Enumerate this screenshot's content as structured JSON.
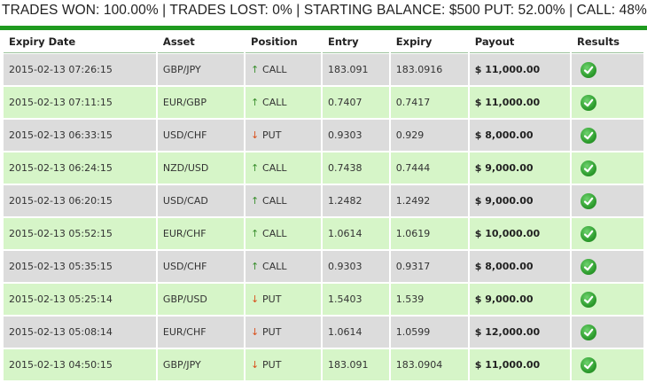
{
  "summary": "TRADES WON: 100.00% | TRADES LOST: 0% | STARTING BALANCE: $500 PUT: 52.00% | CALL: 48%",
  "colors": {
    "accent": "#1f9a1f",
    "row_odd": "#dcdcdc",
    "row_even": "#d6f5c8",
    "call_arrow": "#3a8f2e",
    "put_arrow": "#d9501c"
  },
  "headers": [
    "Expiry Date",
    "Asset",
    "Position",
    "Entry",
    "Expiry",
    "Payout",
    "Results"
  ],
  "rows": [
    {
      "date": "2015-02-13 07:26:15",
      "asset": "GBP/JPY",
      "position": "CALL",
      "entry": "183.091",
      "expiry": "183.0916",
      "payout": "$ 11,000.00",
      "result": "check-icon"
    },
    {
      "date": "2015-02-13 07:11:15",
      "asset": "EUR/GBP",
      "position": "CALL",
      "entry": "0.7407",
      "expiry": "0.7417",
      "payout": "$ 11,000.00",
      "result": "check-icon"
    },
    {
      "date": "2015-02-13 06:33:15",
      "asset": "USD/CHF",
      "position": "PUT",
      "entry": "0.9303",
      "expiry": "0.929",
      "payout": "$ 8,000.00",
      "result": "check-icon"
    },
    {
      "date": "2015-02-13 06:24:15",
      "asset": "NZD/USD",
      "position": "CALL",
      "entry": "0.7438",
      "expiry": "0.7444",
      "payout": "$ 9,000.00",
      "result": "check-icon"
    },
    {
      "date": "2015-02-13 06:20:15",
      "asset": "USD/CAD",
      "position": "CALL",
      "entry": "1.2482",
      "expiry": "1.2492",
      "payout": "$ 9,000.00",
      "result": "check-icon"
    },
    {
      "date": "2015-02-13 05:52:15",
      "asset": "EUR/CHF",
      "position": "CALL",
      "entry": "1.0614",
      "expiry": "1.0619",
      "payout": "$ 10,000.00",
      "result": "check-icon"
    },
    {
      "date": "2015-02-13 05:35:15",
      "asset": "USD/CHF",
      "position": "CALL",
      "entry": "0.9303",
      "expiry": "0.9317",
      "payout": "$ 8,000.00",
      "result": "check-icon"
    },
    {
      "date": "2015-02-13 05:25:14",
      "asset": "GBP/USD",
      "position": "PUT",
      "entry": "1.5403",
      "expiry": "1.539",
      "payout": "$ 9,000.00",
      "result": "check-icon"
    },
    {
      "date": "2015-02-13 05:08:14",
      "asset": "EUR/CHF",
      "position": "PUT",
      "entry": "1.0614",
      "expiry": "1.0599",
      "payout": "$ 12,000.00",
      "result": "check-icon"
    },
    {
      "date": "2015-02-13 04:50:15",
      "asset": "GBP/JPY",
      "position": "PUT",
      "entry": "183.091",
      "expiry": "183.0904",
      "payout": "$ 11,000.00",
      "result": "check-icon"
    }
  ]
}
